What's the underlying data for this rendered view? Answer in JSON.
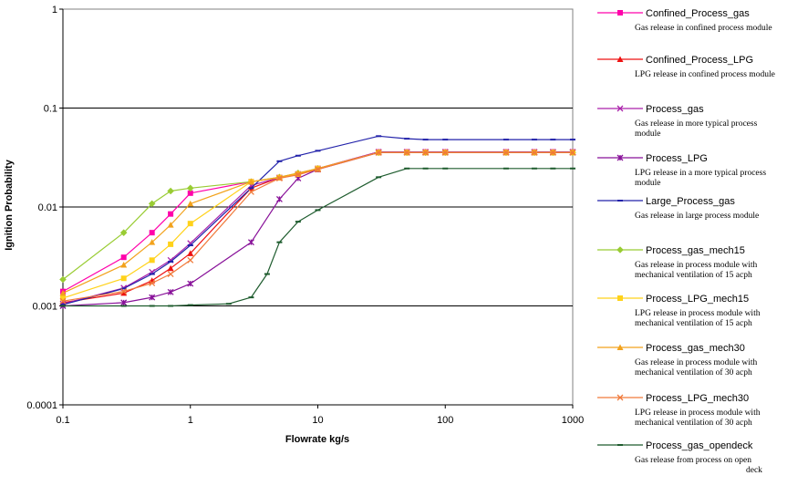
{
  "chart_data": {
    "type": "line",
    "x_scale": "log",
    "y_scale": "log",
    "xlim": [
      0.1,
      1000
    ],
    "ylim": [
      0.0001,
      1
    ],
    "xlabel": "Flowrate kg/s",
    "ylabel": "Ignition Probability",
    "x_tick_labels": [
      "0.1",
      "1",
      "10",
      "100",
      "1000"
    ],
    "x_tick_values": [
      0.1,
      1,
      10,
      100,
      1000
    ],
    "y_tick_labels": [
      "1",
      "0.1",
      "0.01",
      "0.001",
      "0.0001"
    ],
    "y_tick_values": [
      1,
      0.1,
      0.01,
      0.001,
      0.0001
    ],
    "grid": "horizontal",
    "legend_position": "right",
    "series": [
      {
        "name": "Confined_Process_gas",
        "description": "Gas release in confined process module",
        "color": "#ff00aa",
        "marker": "square",
        "x": [
          0.1,
          0.3,
          0.5,
          0.7,
          1,
          3,
          5,
          7,
          10,
          30,
          50,
          70,
          100,
          300,
          500,
          700,
          1000
        ],
        "y": [
          0.0014,
          0.0031,
          0.0055,
          0.0085,
          0.0138,
          0.018,
          0.0198,
          0.0215,
          0.0245,
          0.036,
          0.036,
          0.036,
          0.036,
          0.036,
          0.036,
          0.036,
          0.036
        ]
      },
      {
        "name": "Confined_Process_LPG",
        "description": "LPG release in confined process module",
        "color": "#ee1111",
        "marker": "triangle",
        "x": [
          0.1,
          0.3,
          0.5,
          0.7,
          1,
          3,
          5,
          7,
          10,
          30,
          50,
          70,
          100,
          300,
          500,
          700,
          1000
        ],
        "y": [
          0.00108,
          0.00135,
          0.0018,
          0.0024,
          0.0034,
          0.0155,
          0.0198,
          0.0212,
          0.024,
          0.036,
          0.036,
          0.036,
          0.036,
          0.036,
          0.036,
          0.036,
          0.036
        ]
      },
      {
        "name": "Process_gas",
        "description": "Gas release in more typical process module",
        "color": "#aa22aa",
        "marker": "x",
        "x": [
          0.1,
          0.3,
          0.5,
          0.7,
          1,
          3,
          5,
          7,
          10,
          30,
          50,
          70,
          100,
          300,
          500,
          700,
          1000
        ],
        "y": [
          0.00105,
          0.00152,
          0.0022,
          0.0029,
          0.0043,
          0.0165,
          0.0198,
          0.0215,
          0.0245,
          0.036,
          0.036,
          0.036,
          0.036,
          0.036,
          0.036,
          0.036,
          0.036
        ]
      },
      {
        "name": "Process_LPG",
        "description": "LPG release in a more typical process module",
        "color": "#881199",
        "marker": "star",
        "x": [
          0.1,
          0.3,
          0.5,
          0.7,
          1,
          3,
          5,
          7,
          10,
          30,
          50,
          70,
          100,
          300,
          500,
          700,
          1000
        ],
        "y": [
          0.001,
          0.00108,
          0.00122,
          0.00138,
          0.00168,
          0.0044,
          0.012,
          0.0195,
          0.024,
          0.0355,
          0.0355,
          0.0355,
          0.0355,
          0.0355,
          0.0355,
          0.0355,
          0.0355
        ]
      },
      {
        "name": "Large_Process_gas",
        "description": "Gas release in large process module",
        "color": "#2222aa",
        "marker": "dash",
        "x": [
          0.1,
          0.3,
          0.5,
          0.7,
          1,
          3,
          5,
          7,
          10,
          30,
          50,
          70,
          100,
          300,
          500,
          700,
          1000
        ],
        "y": [
          0.00103,
          0.0015,
          0.0021,
          0.0028,
          0.0041,
          0.0155,
          0.029,
          0.033,
          0.037,
          0.052,
          0.049,
          0.048,
          0.048,
          0.048,
          0.048,
          0.048,
          0.048
        ]
      },
      {
        "name": "Process_gas_mech15",
        "description": "Gas release in process module with mechanical ventilation of 15 acph",
        "color": "#99cc33",
        "marker": "diamond",
        "x": [
          0.1,
          0.3,
          0.5,
          0.7,
          1,
          3,
          5,
          7,
          10,
          30,
          50,
          70,
          100,
          300,
          500,
          700,
          1000
        ],
        "y": [
          0.00185,
          0.0055,
          0.0108,
          0.0145,
          0.0155,
          0.018,
          0.02,
          0.022,
          0.0245,
          0.0355,
          0.0355,
          0.0355,
          0.0355,
          0.0355,
          0.0355,
          0.0355,
          0.0355
        ]
      },
      {
        "name": "Process_LPG_mech15",
        "description": "LPG release in process module with mechanical ventilation of 15 acph",
        "color": "#ffd21a",
        "marker": "square",
        "x": [
          0.1,
          0.3,
          0.5,
          0.7,
          1,
          3,
          5,
          7,
          10,
          30,
          50,
          70,
          100,
          300,
          500,
          700,
          1000
        ],
        "y": [
          0.0012,
          0.0019,
          0.0029,
          0.0042,
          0.0068,
          0.018,
          0.0198,
          0.0215,
          0.0245,
          0.0355,
          0.0355,
          0.0355,
          0.0355,
          0.0355,
          0.0355,
          0.0355,
          0.0355
        ]
      },
      {
        "name": "Process_gas_mech30",
        "description": "Gas release in process module with mechanical ventilation of 30 acph",
        "color": "#f2a21c",
        "marker": "triangle",
        "x": [
          0.1,
          0.3,
          0.5,
          0.7,
          1,
          3,
          5,
          7,
          10,
          30,
          50,
          70,
          100,
          300,
          500,
          700,
          1000
        ],
        "y": [
          0.00135,
          0.0026,
          0.0044,
          0.0066,
          0.0108,
          0.018,
          0.02,
          0.022,
          0.0245,
          0.0355,
          0.0355,
          0.0355,
          0.0355,
          0.0355,
          0.0355,
          0.0355,
          0.0355
        ]
      },
      {
        "name": "Process_LPG_mech30",
        "description": "LPG release in process module with mechanical ventilation of 30 acph",
        "color": "#f07a3a",
        "marker": "x",
        "x": [
          0.1,
          0.3,
          0.5,
          0.7,
          1,
          3,
          5,
          7,
          10,
          30,
          50,
          70,
          100,
          300,
          500,
          700,
          1000
        ],
        "y": [
          0.00112,
          0.0014,
          0.0017,
          0.0021,
          0.0029,
          0.0142,
          0.0195,
          0.0212,
          0.024,
          0.0355,
          0.0355,
          0.0355,
          0.0355,
          0.0355,
          0.0355,
          0.0355,
          0.0355
        ]
      },
      {
        "name": "Process_gas_opendeck",
        "description": "Gas release from process on open deck",
        "color": "#1e5c2e",
        "marker": "dash",
        "x": [
          0.1,
          0.3,
          0.5,
          0.7,
          1,
          2,
          3,
          4,
          5,
          7,
          10,
          30,
          50,
          70,
          100,
          300,
          500,
          700,
          1000
        ],
        "y": [
          0.001,
          0.001,
          0.001,
          0.001,
          0.00102,
          0.00105,
          0.00122,
          0.0021,
          0.0044,
          0.0071,
          0.0093,
          0.02,
          0.0245,
          0.0245,
          0.0245,
          0.0245,
          0.0245,
          0.0245,
          0.0245
        ]
      }
    ]
  }
}
